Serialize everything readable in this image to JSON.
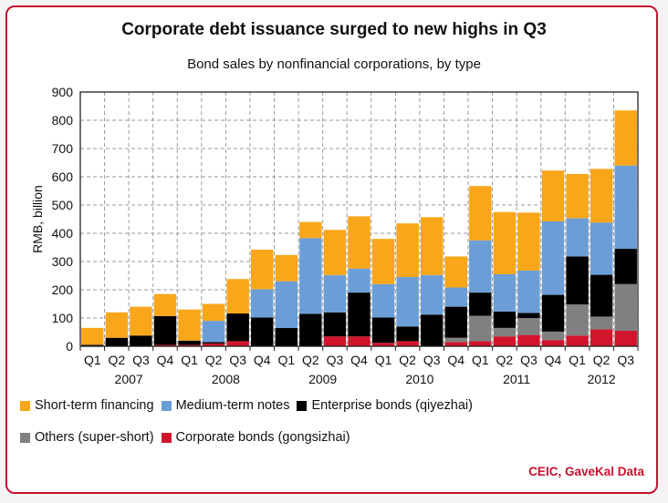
{
  "chart_data": {
    "type": "bar",
    "stacked": true,
    "title": "Corporate debt issuance surged to new highs in Q3",
    "subtitle": "Bond sales by nonfinancial corporations, by type",
    "ylabel": "RMB, billion",
    "ylim": [
      0,
      900
    ],
    "yticks": [
      0,
      100,
      200,
      300,
      400,
      500,
      600,
      700,
      800,
      900
    ],
    "grid": true,
    "quarters": [
      "Q1",
      "Q2",
      "Q3",
      "Q4",
      "Q1",
      "Q2",
      "Q3",
      "Q4",
      "Q1",
      "Q2",
      "Q3",
      "Q4",
      "Q1",
      "Q2",
      "Q3",
      "Q4",
      "Q1",
      "Q2",
      "Q3",
      "Q4",
      "Q1",
      "Q2",
      "Q3"
    ],
    "years": [
      {
        "label": "2007",
        "start": 0,
        "count": 4
      },
      {
        "label": "2008",
        "start": 4,
        "count": 4
      },
      {
        "label": "2009",
        "start": 8,
        "count": 4
      },
      {
        "label": "2010",
        "start": 12,
        "count": 4
      },
      {
        "label": "2011",
        "start": 16,
        "count": 4
      },
      {
        "label": "2012",
        "start": 20,
        "count": 3
      }
    ],
    "series": [
      {
        "name": "Corporate bonds (gongsizhai)",
        "color": "#d0152c",
        "values": [
          0,
          0,
          0,
          5,
          5,
          10,
          18,
          0,
          0,
          0,
          35,
          35,
          12,
          18,
          0,
          15,
          18,
          35,
          40,
          22,
          38,
          60,
          55
        ]
      },
      {
        "name": "Others (super-short)",
        "color": "#808080",
        "values": [
          0,
          0,
          0,
          0,
          0,
          0,
          0,
          0,
          0,
          0,
          0,
          0,
          0,
          0,
          0,
          15,
          90,
          30,
          60,
          30,
          110,
          45,
          165
        ]
      },
      {
        "name": "Enterprise bonds (qiyezhai)",
        "color": "#000000",
        "values": [
          5,
          30,
          38,
          102,
          15,
          5,
          98,
          102,
          65,
          115,
          85,
          155,
          90,
          52,
          112,
          110,
          82,
          58,
          18,
          130,
          170,
          148,
          125
        ]
      },
      {
        "name": "Medium-term notes",
        "color": "#6b9ed6",
        "values": [
          0,
          0,
          0,
          0,
          0,
          75,
          0,
          100,
          165,
          268,
          132,
          85,
          118,
          175,
          140,
          68,
          185,
          132,
          150,
          260,
          135,
          185,
          295
        ]
      },
      {
        "name": "Short-term financing",
        "color": "#f9a61a",
        "values": [
          60,
          90,
          102,
          78,
          110,
          60,
          122,
          140,
          93,
          57,
          160,
          185,
          160,
          190,
          205,
          110,
          192,
          220,
          205,
          180,
          157,
          190,
          195
        ]
      }
    ],
    "legend": {
      "position": "bottom",
      "rows": [
        [
          "Short-term financing",
          "Medium-term notes",
          "Enterprise bonds (qiyezhai)"
        ],
        [
          "Others (super-short)",
          "Corporate bonds (gongsizhai)"
        ]
      ]
    },
    "source": "CEIC, GaveKal Data"
  }
}
